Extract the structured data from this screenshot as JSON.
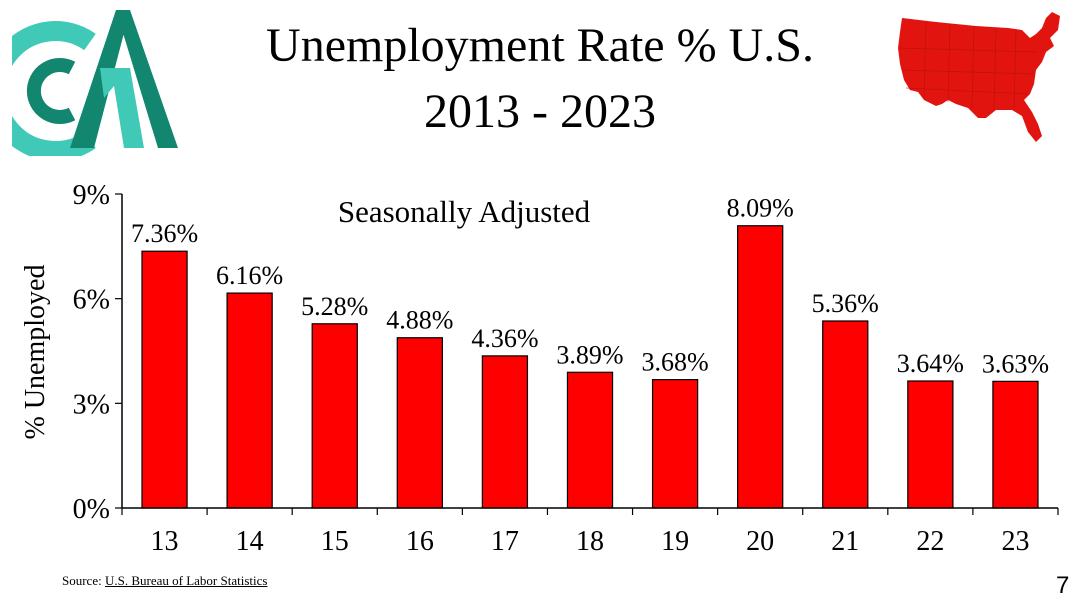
{
  "title": {
    "line1": "Unemployment Rate % U.S.",
    "line2": "2013 - 2023"
  },
  "logo": {
    "icon": "company-logo-icon",
    "colors": [
      "#3fc9b6",
      "#12866e"
    ]
  },
  "map": {
    "icon": "usa-map-icon",
    "color": "#e2140f"
  },
  "chart_data": {
    "type": "bar",
    "subtitle": "Seasonally Adjusted",
    "ylabel": "% Unemployed",
    "xlabel": "",
    "categories": [
      "13",
      "14",
      "15",
      "16",
      "17",
      "18",
      "19",
      "20",
      "21",
      "22",
      "23"
    ],
    "values": [
      7.36,
      6.16,
      5.28,
      4.88,
      4.36,
      3.89,
      3.68,
      8.09,
      5.36,
      3.64,
      3.63
    ],
    "data_labels": [
      "7.36%",
      "6.16%",
      "5.28%",
      "4.88%",
      "4.36%",
      "3.89%",
      "3.68%",
      "8.09%",
      "5.36%",
      "3.64%",
      "3.63%"
    ],
    "ylim": [
      0,
      9
    ],
    "yticks": [
      0,
      3,
      6,
      9
    ],
    "ytick_labels": [
      "0%",
      "3%",
      "6%",
      "9%"
    ],
    "grid": false,
    "bar_color": "#ff0000"
  },
  "footer": {
    "source_prefix": "Source: ",
    "source_link": "U.S. Bureau of Labor Statistics",
    "page_number": "7"
  }
}
